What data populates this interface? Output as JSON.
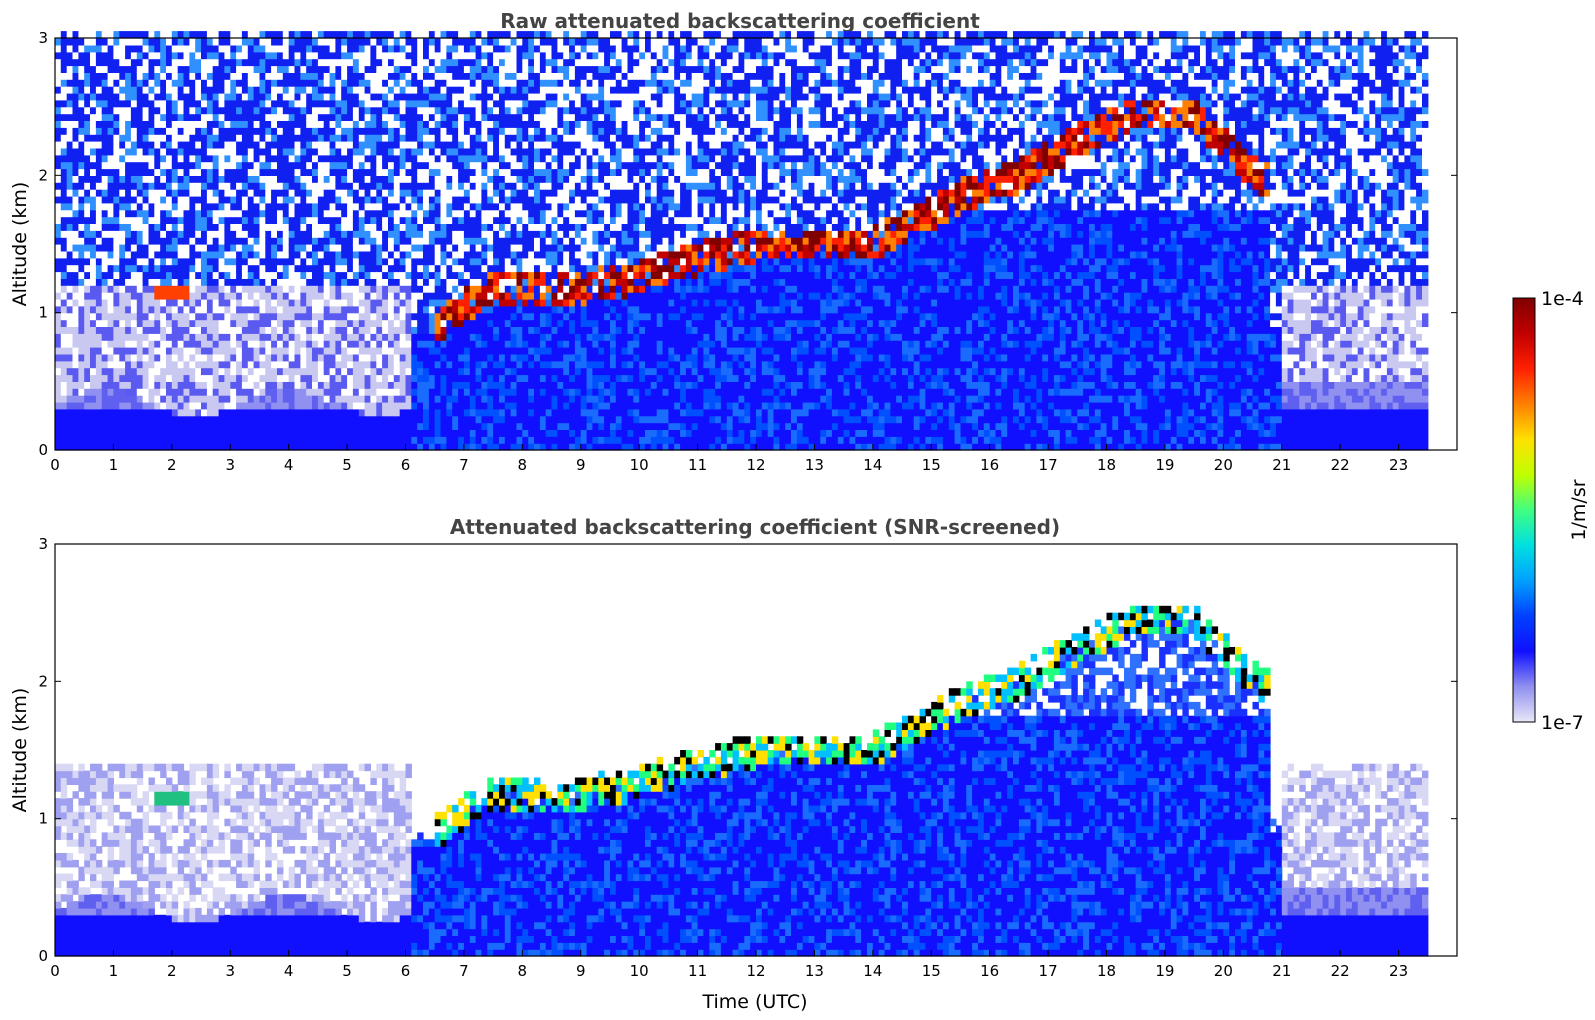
{
  "chart_data": [
    {
      "type": "heatmap",
      "title": "Raw attenuated backscattering coefficient",
      "xlabel": "",
      "ylabel": "Altitude (km)",
      "xlim": [
        0,
        24
      ],
      "ylim": [
        0,
        3
      ],
      "xticks": [
        "0",
        "1",
        "2",
        "3",
        "4",
        "5",
        "6",
        "7",
        "8",
        "9",
        "10",
        "11",
        "12",
        "13",
        "14",
        "15",
        "16",
        "17",
        "18",
        "19",
        "20",
        "21",
        "22",
        "23"
      ],
      "yticks": [
        "0",
        "1",
        "2",
        "3"
      ],
      "data_extent_hours": 23.5,
      "grid": false,
      "cloud_layers": [
        {
          "t": 1.9,
          "alt": 1.15
        },
        {
          "t": 6.5,
          "alt": 0.9
        },
        {
          "t": 7.5,
          "alt": 1.2
        },
        {
          "t": 8.5,
          "alt": 1.15
        },
        {
          "t": 9.9,
          "alt": 1.25
        },
        {
          "t": 11.0,
          "alt": 1.4
        },
        {
          "t": 12.0,
          "alt": 1.5
        },
        {
          "t": 13.0,
          "alt": 1.5
        },
        {
          "t": 14.0,
          "alt": 1.5
        },
        {
          "t": 15.5,
          "alt": 1.85
        },
        {
          "t": 16.5,
          "alt": 2.0
        },
        {
          "t": 17.5,
          "alt": 2.25
        },
        {
          "t": 18.5,
          "alt": 2.45
        },
        {
          "t": 19.5,
          "alt": 2.45
        },
        {
          "t": 20.3,
          "alt": 2.1
        },
        {
          "t": 20.8,
          "alt": 1.95
        }
      ]
    },
    {
      "type": "heatmap",
      "title": "Attenuated backscattering coefficient (SNR-screened)",
      "xlabel": "Time (UTC)",
      "ylabel": "Altitude (km)",
      "xlim": [
        0,
        24
      ],
      "ylim": [
        0,
        3
      ],
      "xticks": [
        "0",
        "1",
        "2",
        "3",
        "4",
        "5",
        "6",
        "7",
        "8",
        "9",
        "10",
        "11",
        "12",
        "13",
        "14",
        "15",
        "16",
        "17",
        "18",
        "19",
        "20",
        "21",
        "22",
        "23"
      ],
      "yticks": [
        "0",
        "1",
        "2",
        "3"
      ],
      "data_extent_hours": 23.5,
      "grid": false
    }
  ],
  "colorbar": {
    "label": "1/m/sr",
    "max_label": "1e-4",
    "min_label": "1e-7",
    "scale": "log",
    "range": [
      1e-07,
      0.0001
    ],
    "colormap": [
      "#e8e8f8",
      "#9090f0",
      "#1010ff",
      "#0040ff",
      "#00a0ff",
      "#00e0e0",
      "#40ff80",
      "#c0ff00",
      "#ffe000",
      "#ff8000",
      "#ff2000",
      "#c00000",
      "#800000"
    ]
  }
}
